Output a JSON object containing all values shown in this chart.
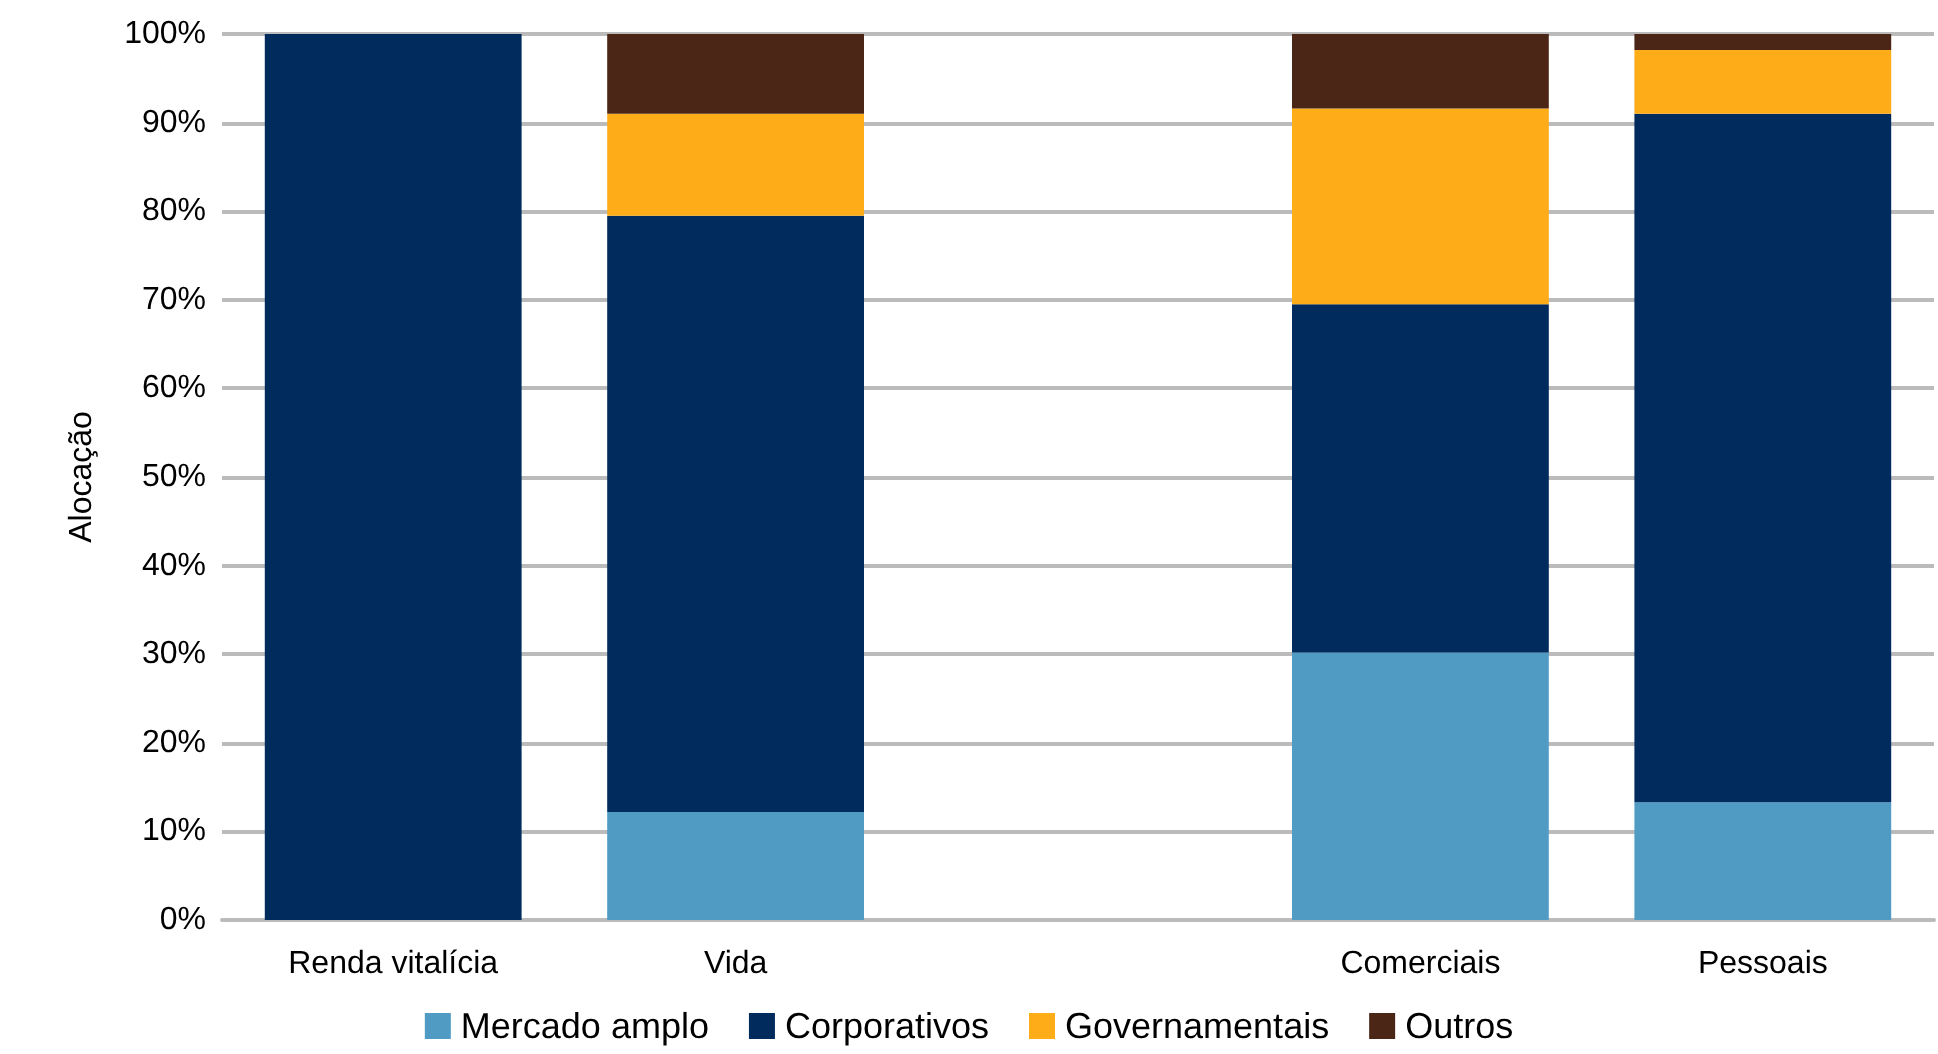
{
  "chart_data": {
    "type": "bar",
    "stacked": true,
    "ylabel": "Alocação",
    "categories": [
      "Renda vitalícia",
      "Vida",
      null,
      "Comerciais",
      "Pessoais"
    ],
    "series": [
      {
        "name": "Mercado amplo",
        "color": "#4f9bc4",
        "values": [
          0,
          12.2,
          null,
          30.2,
          13.3
        ]
      },
      {
        "name": "Corporativos",
        "color": "#002b5c",
        "values": [
          100,
          67.3,
          null,
          39.3,
          77.7
        ]
      },
      {
        "name": "Governamentais",
        "color": "#ffac19",
        "values": [
          0,
          11.5,
          null,
          22.1,
          7.2
        ]
      },
      {
        "name": "Outros",
        "color": "#4b2616",
        "values": [
          0,
          9,
          null,
          8.4,
          1.8
        ]
      }
    ],
    "ylim": [
      0,
      100
    ],
    "yticks": [
      {
        "value": 0,
        "label": "0%"
      },
      {
        "value": 10,
        "label": "10%"
      },
      {
        "value": 20,
        "label": "20%"
      },
      {
        "value": 30,
        "label": "30%"
      },
      {
        "value": 40,
        "label": "40%"
      },
      {
        "value": 50,
        "label": "50%"
      },
      {
        "value": 60,
        "label": "60%"
      },
      {
        "value": 70,
        "label": "70%"
      },
      {
        "value": 80,
        "label": "80%"
      },
      {
        "value": 90,
        "label": "90%"
      },
      {
        "value": 100,
        "label": "100%"
      }
    ],
    "grid": "y",
    "legend": "bottom"
  }
}
